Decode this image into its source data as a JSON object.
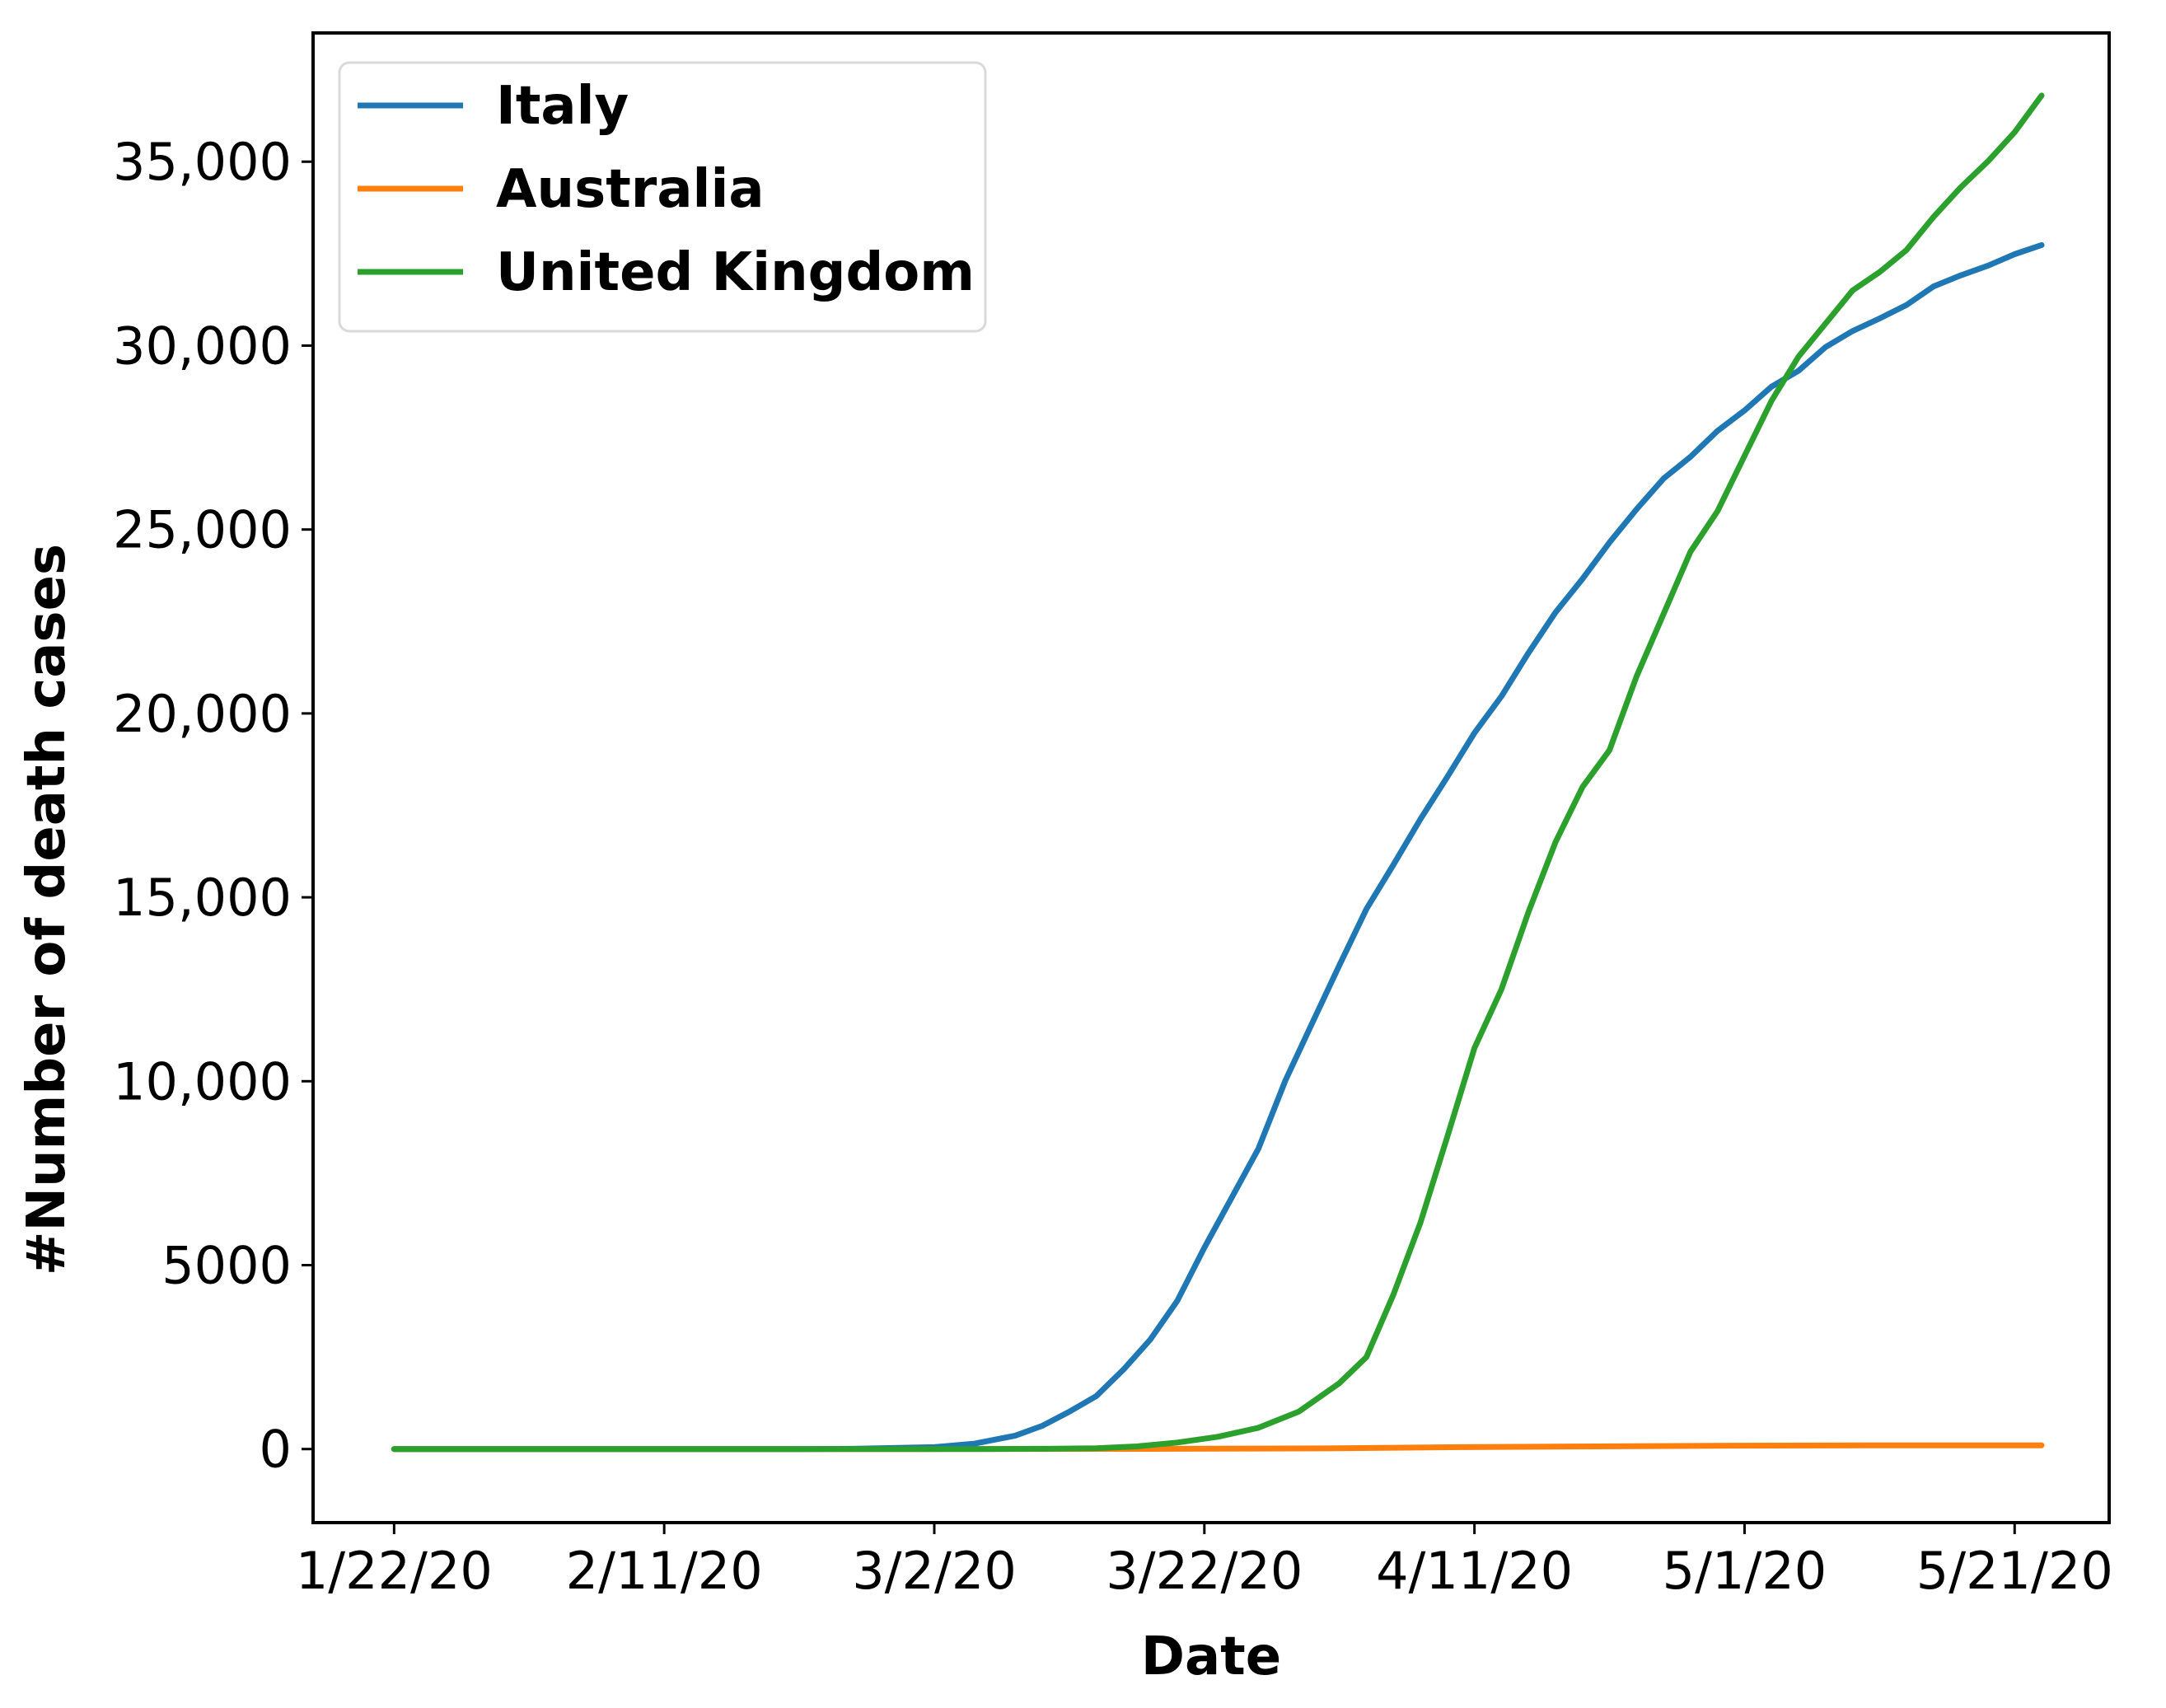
{
  "chart_data": {
    "type": "line",
    "xlabel": "Date",
    "ylabel": "#Number of death cases",
    "x_ticks": [
      "1/22/20",
      "2/11/20",
      "3/2/20",
      "3/22/20",
      "4/11/20",
      "5/1/20",
      "5/21/20"
    ],
    "y_ticks": [
      "0",
      "5000",
      "10,000",
      "15,000",
      "20,000",
      "25,000",
      "30,000",
      "35,000"
    ],
    "y_tick_values": [
      0,
      5000,
      10000,
      15000,
      20000,
      25000,
      30000,
      35000
    ],
    "xlim": [
      "2020-01-16",
      "2020-05-28"
    ],
    "ylim": [
      -2000,
      38500
    ],
    "grid": false,
    "legend": "top-left",
    "series": [
      {
        "name": "Italy",
        "color": "#1f77b4",
        "x": [
          "2020-01-22",
          "2020-02-21",
          "2020-02-25",
          "2020-02-28",
          "2020-03-02",
          "2020-03-05",
          "2020-03-08",
          "2020-03-10",
          "2020-03-12",
          "2020-03-14",
          "2020-03-16",
          "2020-03-18",
          "2020-03-20",
          "2020-03-22",
          "2020-03-24",
          "2020-03-26",
          "2020-03-28",
          "2020-03-30",
          "2020-04-01",
          "2020-04-03",
          "2020-04-05",
          "2020-04-07",
          "2020-04-09",
          "2020-04-11",
          "2020-04-13",
          "2020-04-15",
          "2020-04-17",
          "2020-04-19",
          "2020-04-21",
          "2020-04-23",
          "2020-04-25",
          "2020-04-27",
          "2020-04-29",
          "2020-05-01",
          "2020-05-03",
          "2020-05-05",
          "2020-05-07",
          "2020-05-09",
          "2020-05-11",
          "2020-05-13",
          "2020-05-15",
          "2020-05-17",
          "2020-05-19",
          "2020-05-21",
          "2020-05-23"
        ],
        "y": [
          0,
          1,
          7,
          29,
          52,
          148,
          366,
          631,
          1016,
          1441,
          2158,
          2978,
          4032,
          5476,
          6820,
          8165,
          10023,
          11591,
          13155,
          14681,
          15887,
          17127,
          18279,
          19468,
          20465,
          21645,
          22745,
          23660,
          24648,
          25549,
          26384,
          26977,
          27682,
          28236,
          28884,
          29315,
          29958,
          30395,
          30739,
          31106,
          31610,
          31908,
          32169,
          32486,
          32735
        ]
      },
      {
        "name": "Australia",
        "color": "#ff7f0e",
        "x": [
          "2020-01-22",
          "2020-03-01",
          "2020-03-10",
          "2020-03-20",
          "2020-03-31",
          "2020-04-10",
          "2020-04-20",
          "2020-04-30",
          "2020-05-10",
          "2020-05-23"
        ],
        "y": [
          0,
          1,
          3,
          6,
          18,
          53,
          71,
          93,
          98,
          102
        ]
      },
      {
        "name": "United Kingdom",
        "color": "#2ca02c",
        "x": [
          "2020-01-22",
          "2020-03-05",
          "2020-03-10",
          "2020-03-14",
          "2020-03-17",
          "2020-03-20",
          "2020-03-23",
          "2020-03-26",
          "2020-03-29",
          "2020-04-01",
          "2020-04-03",
          "2020-04-05",
          "2020-04-07",
          "2020-04-09",
          "2020-04-11",
          "2020-04-13",
          "2020-04-15",
          "2020-04-17",
          "2020-04-19",
          "2020-04-21",
          "2020-04-23",
          "2020-04-25",
          "2020-04-27",
          "2020-04-29",
          "2020-05-01",
          "2020-05-03",
          "2020-05-05",
          "2020-05-07",
          "2020-05-09",
          "2020-05-11",
          "2020-05-13",
          "2020-05-15",
          "2020-05-17",
          "2020-05-19",
          "2020-05-21",
          "2020-05-23"
        ],
        "y": [
          0,
          1,
          6,
          21,
          71,
          178,
          335,
          578,
          1019,
          1793,
          2500,
          4200,
          6159,
          8500,
          10900,
          12500,
          14600,
          16500,
          18000,
          19000,
          21000,
          22700,
          24400,
          25500,
          27000,
          28500,
          29700,
          30600,
          31500,
          32000,
          32600,
          33500,
          34300,
          35000,
          35800,
          36800
        ]
      }
    ]
  }
}
